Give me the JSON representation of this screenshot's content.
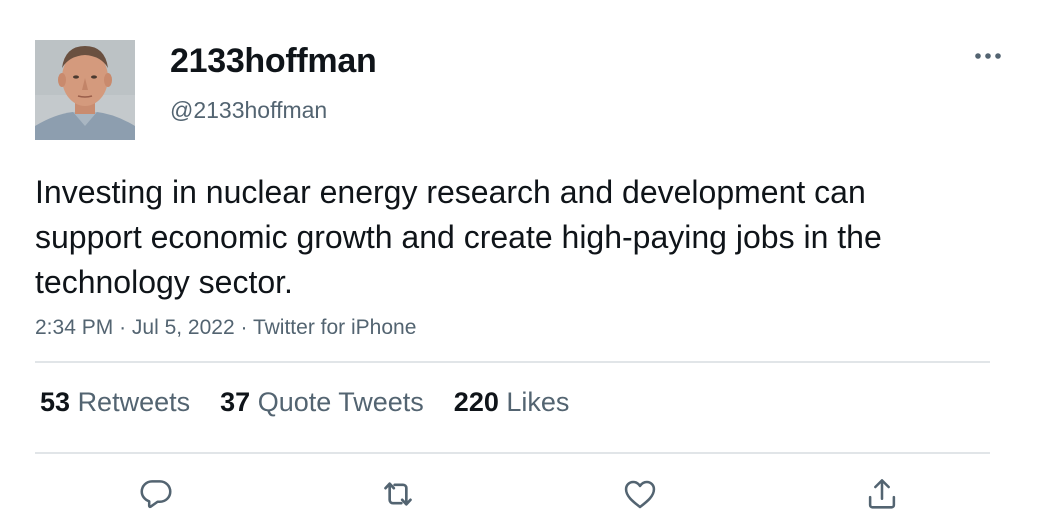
{
  "tweet": {
    "display_name": "2133hoffman",
    "handle": "@2133hoffman",
    "avatar_icon": "profile-photo",
    "text": "Investing in nuclear energy research and development can support economic growth and create high-paying jobs in the technology sector.",
    "time": "2:34 PM",
    "separator": "·",
    "date": "Jul 5, 2022",
    "source": "Twitter for iPhone"
  },
  "stats": {
    "retweets_count": "53",
    "retweets_label": "Retweets",
    "quotes_count": "37",
    "quotes_label": "Quote Tweets",
    "likes_count": "220",
    "likes_label": "Likes"
  },
  "actions": {
    "reply_icon": "reply-icon",
    "retweet_icon": "retweet-icon",
    "like_icon": "heart-icon",
    "share_icon": "share-icon",
    "icon_color": "#536471"
  },
  "colors": {
    "text_primary": "#0f1419",
    "text_secondary": "#536471",
    "divider": "#e1e5e8"
  }
}
